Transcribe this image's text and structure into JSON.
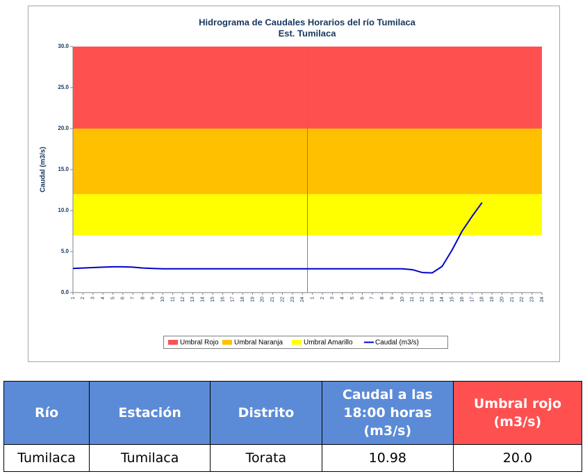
{
  "chart_data": {
    "type": "line",
    "title": "Hidrograma de Caudales Horarios del río Tumilaca",
    "subtitle": "Est. Tumilaca",
    "ylabel": "Caudal (m3/s)",
    "categories": [
      "1",
      "2",
      "3",
      "4",
      "5",
      "6",
      "7",
      "8",
      "9",
      "10",
      "11",
      "12",
      "13",
      "14",
      "15",
      "16",
      "17",
      "18",
      "19",
      "20",
      "21",
      "22",
      "23",
      "24",
      "1",
      "2",
      "3",
      "4",
      "5",
      "6",
      "7",
      "8",
      "9",
      "10",
      "11",
      "12",
      "13",
      "14",
      "15",
      "16",
      "17",
      "18",
      "19",
      "20",
      "21",
      "22",
      "23",
      "24"
    ],
    "bands": [
      {
        "name": "Umbral Rojo",
        "color": "#ff5050",
        "from": 20,
        "to": 30
      },
      {
        "name": "Umbral Naranja",
        "color": "#ffc000",
        "from": 12,
        "to": 20
      },
      {
        "name": "Umbral Amarillo",
        "color": "#ffff00",
        "from": 7,
        "to": 12
      }
    ],
    "series": [
      {
        "name": "Caudal (m3/s)",
        "color": "#0000cc",
        "values": [
          2.95,
          3.0,
          3.05,
          3.1,
          3.15,
          3.15,
          3.1,
          3.0,
          2.95,
          2.9,
          2.9,
          2.9,
          2.9,
          2.9,
          2.9,
          2.9,
          2.9,
          2.9,
          2.9,
          2.9,
          2.9,
          2.9,
          2.9,
          2.9,
          2.9,
          2.9,
          2.9,
          2.9,
          2.9,
          2.9,
          2.9,
          2.9,
          2.9,
          2.9,
          2.8,
          2.45,
          2.4,
          3.2,
          5.2,
          7.5,
          9.3,
          10.98,
          null,
          null,
          null,
          null,
          null,
          null
        ]
      }
    ],
    "ylim": [
      0,
      30
    ],
    "yticks": [
      {
        "value": 0,
        "label": "0.0"
      },
      {
        "value": 5,
        "label": "5.0"
      },
      {
        "value": 10,
        "label": "10.0"
      },
      {
        "value": 15,
        "label": "15.0"
      },
      {
        "value": 20,
        "label": "20.0"
      },
      {
        "value": 25,
        "label": "25.0"
      },
      {
        "value": 30,
        "label": "30.0"
      }
    ],
    "legend": "bottom"
  },
  "table": {
    "header": [
      "Río",
      "Estación",
      "Distrito",
      "Caudal a las 18:00 horas (m3/s)",
      "Umbral rojo (m3/s)"
    ],
    "rows": [
      [
        "Tumilaca",
        "Tumilaca",
        "Torata",
        "10.98",
        "20.0"
      ]
    ]
  }
}
